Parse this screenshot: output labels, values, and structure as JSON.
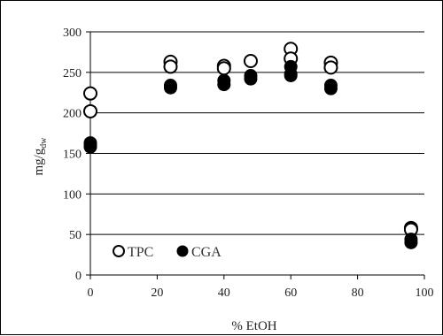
{
  "chart_data": {
    "type": "scatter",
    "xlabel": "% EtOH",
    "ylabel_main": "mg/g",
    "ylabel_sub": "dw",
    "xlim": [
      0,
      100
    ],
    "ylim": [
      0,
      300
    ],
    "xticks": [
      0,
      20,
      40,
      60,
      80,
      100
    ],
    "yticks": [
      0,
      50,
      100,
      150,
      200,
      250,
      300
    ],
    "grid": "horizontal",
    "legend_position": "bottom-left",
    "series": [
      {
        "name": "TPC",
        "marker": "open-circle",
        "color": "#000000",
        "points": [
          [
            0,
            224
          ],
          [
            0,
            202
          ],
          [
            24,
            263
          ],
          [
            24,
            257
          ],
          [
            40,
            258
          ],
          [
            40,
            255
          ],
          [
            48,
            264
          ],
          [
            60,
            279
          ],
          [
            60,
            267
          ],
          [
            72,
            262
          ],
          [
            72,
            256
          ],
          [
            96,
            58
          ],
          [
            96,
            56
          ]
        ]
      },
      {
        "name": "CGA",
        "marker": "filled-circle",
        "color": "#000000",
        "points": [
          [
            0,
            163
          ],
          [
            0,
            160
          ],
          [
            0,
            158
          ],
          [
            24,
            234
          ],
          [
            24,
            231
          ],
          [
            40,
            240
          ],
          [
            40,
            235
          ],
          [
            48,
            246
          ],
          [
            48,
            242
          ],
          [
            60,
            257
          ],
          [
            60,
            248
          ],
          [
            60,
            246
          ],
          [
            72,
            234
          ],
          [
            72,
            230
          ],
          [
            96,
            44
          ],
          [
            96,
            40
          ]
        ]
      }
    ]
  }
}
